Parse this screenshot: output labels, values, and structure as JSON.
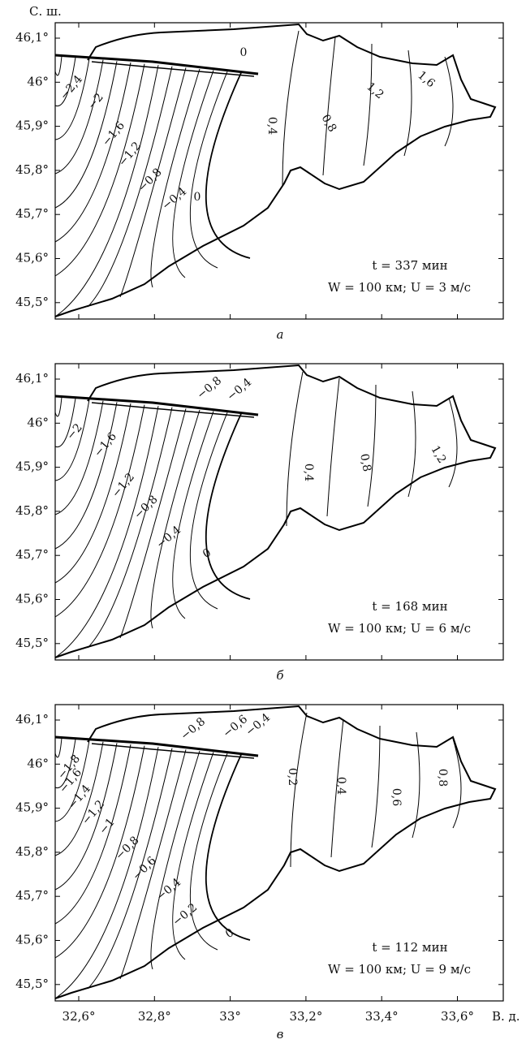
{
  "axis": {
    "lat_title": "С. ш.",
    "lon_title": "В. д.",
    "lat_labels": [
      "46,1°",
      "46°",
      "45,9°",
      "45,8°",
      "45,7°",
      "45,6°",
      "45,5°"
    ],
    "lon_labels": [
      "32,6°",
      "32,8°",
      "33°",
      "33,2°",
      "33,4°",
      "33,6°"
    ]
  },
  "panels": [
    {
      "caption": "а",
      "time": "t = 337 мин",
      "params": "W = 100 км;  U = 3 м/с",
      "contour_labels": [
        "−2,4",
        "−2",
        "−1,6",
        "−1,2",
        "−0,8",
        "−0,4",
        "0",
        "0",
        "0,4",
        "0,8",
        "1,2",
        "1,6"
      ]
    },
    {
      "caption": "б",
      "time": "t = 168 мин",
      "params": "W = 100 км;  U = 6 м/с",
      "contour_labels": [
        "−2",
        "−1,6",
        "−1,2",
        "−0,8",
        "−0,4",
        "0",
        "−0,8",
        "−0,4",
        "0,4",
        "0,8",
        "1,2"
      ]
    },
    {
      "caption": "в",
      "time": "t = 112 мин",
      "params": "W = 100 км;  U = 9 м/с",
      "contour_labels": [
        "−1,8",
        "−1,6",
        "−1,4",
        "−1,2",
        "−1",
        "−0,8",
        "−0,6",
        "−0,4",
        "−0,2",
        "0",
        "−0,8",
        "−0,6",
        "−0,4",
        "0,2",
        "0,4",
        "0,6",
        "0,8"
      ]
    }
  ]
}
